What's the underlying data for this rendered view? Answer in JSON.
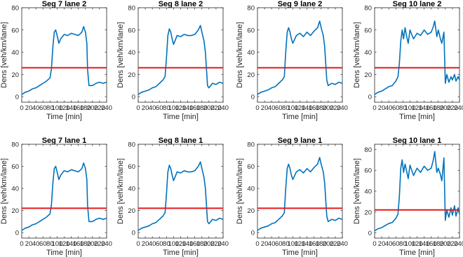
{
  "figure": {
    "background": "#ffffff"
  },
  "style": {
    "series_color": "#0072BD",
    "threshold_color": "#e31a1c",
    "axis_color": "#262626"
  },
  "chart_data": [
    {
      "type": "line",
      "title": "Seg 7 lane 2",
      "xlabel": "Time [min]",
      "ylabel": "Dens [veh/km/lane]",
      "xlim": [
        0,
        240
      ],
      "ylim": [
        -5,
        80
      ],
      "xticks": [
        0,
        20,
        40,
        60,
        80,
        100,
        120,
        140,
        160,
        180,
        200,
        220,
        240
      ],
      "yticks": [
        0,
        20,
        40,
        60,
        80
      ],
      "threshold": 26,
      "series": [
        {
          "x": [
            0,
            10,
            20,
            30,
            40,
            50,
            60,
            70,
            80,
            84,
            88,
            92,
            96,
            100,
            105,
            110,
            120,
            130,
            140,
            150,
            160,
            170,
            175,
            180,
            184,
            186,
            190,
            200,
            210,
            220,
            230,
            240
          ],
          "y": [
            2,
            4,
            5,
            7,
            8,
            10,
            12,
            14,
            17,
            25,
            45,
            58,
            60,
            55,
            48,
            52,
            56,
            55,
            57,
            56,
            55,
            58,
            63,
            58,
            48,
            25,
            10,
            10,
            12,
            13,
            12,
            13
          ]
        }
      ]
    },
    {
      "type": "line",
      "title": "Seg 8 lane 2",
      "xlabel": "Time [min]",
      "ylabel": "Dens [veh/km/lane]",
      "xlim": [
        0,
        240
      ],
      "ylim": [
        -5,
        80
      ],
      "xticks": [
        0,
        20,
        40,
        60,
        80,
        100,
        120,
        140,
        160,
        180,
        200,
        220,
        240
      ],
      "yticks": [
        0,
        20,
        40,
        60,
        80
      ],
      "threshold": 26,
      "series": [
        {
          "x": [
            0,
            10,
            20,
            30,
            40,
            50,
            60,
            70,
            76,
            80,
            84,
            88,
            92,
            96,
            100,
            110,
            120,
            130,
            140,
            150,
            160,
            170,
            176,
            180,
            186,
            190,
            196,
            200,
            210,
            220,
            230,
            240
          ],
          "y": [
            2,
            4,
            5,
            6,
            8,
            9,
            12,
            15,
            18,
            35,
            55,
            61,
            58,
            52,
            47,
            55,
            54,
            56,
            55,
            55,
            56,
            60,
            64,
            58,
            50,
            40,
            10,
            8,
            12,
            11,
            13,
            12
          ]
        }
      ]
    },
    {
      "type": "line",
      "title": "Seg 9 lane 2",
      "xlabel": "Time [min]",
      "ylabel": "Dens [veh/km/lane]",
      "xlim": [
        0,
        240
      ],
      "ylim": [
        -5,
        80
      ],
      "xticks": [
        0,
        20,
        40,
        60,
        80,
        100,
        120,
        140,
        160,
        180,
        200,
        220,
        240
      ],
      "yticks": [
        0,
        20,
        40,
        60,
        80
      ],
      "threshold": 26,
      "series": [
        {
          "x": [
            0,
            10,
            20,
            30,
            40,
            50,
            60,
            70,
            76,
            80,
            84,
            88,
            92,
            96,
            100,
            110,
            120,
            130,
            140,
            150,
            160,
            170,
            176,
            180,
            186,
            190,
            196,
            200,
            210,
            220,
            230,
            240
          ],
          "y": [
            2,
            4,
            5,
            6,
            8,
            9,
            12,
            15,
            18,
            40,
            58,
            62,
            58,
            52,
            48,
            55,
            57,
            54,
            58,
            55,
            59,
            62,
            68,
            62,
            55,
            45,
            15,
            10,
            12,
            11,
            13,
            12
          ]
        }
      ]
    },
    {
      "type": "line",
      "title": "Seg 10 lane 2",
      "xlabel": "Time [min]",
      "ylabel": "Dens [veh/km/lane]",
      "xlim": [
        0,
        240
      ],
      "ylim": [
        -5,
        80
      ],
      "xticks": [
        0,
        20,
        40,
        60,
        80,
        100,
        120,
        140,
        160,
        180,
        200,
        220,
        240
      ],
      "yticks": [
        0,
        20,
        40,
        60,
        80
      ],
      "threshold": 26,
      "series": [
        {
          "x": [
            0,
            10,
            20,
            30,
            40,
            50,
            60,
            66,
            70,
            74,
            78,
            82,
            86,
            90,
            95,
            100,
            110,
            120,
            130,
            140,
            150,
            160,
            166,
            170,
            176,
            180,
            186,
            190,
            196,
            200,
            204,
            210,
            216,
            220,
            226,
            230,
            236,
            240
          ],
          "y": [
            2,
            4,
            5,
            7,
            9,
            10,
            14,
            18,
            30,
            50,
            60,
            52,
            62,
            55,
            48,
            60,
            52,
            57,
            55,
            60,
            56,
            58,
            63,
            68,
            54,
            60,
            52,
            48,
            58,
            12,
            20,
            13,
            18,
            15,
            20,
            14,
            18,
            15
          ]
        }
      ]
    },
    {
      "type": "line",
      "title": "Seg 7 lane 1",
      "xlabel": "Time [min]",
      "ylabel": "Dens [veh/km/lane]",
      "xlim": [
        0,
        240
      ],
      "ylim": [
        -5,
        80
      ],
      "xticks": [
        0,
        20,
        40,
        60,
        80,
        100,
        120,
        140,
        160,
        180,
        200,
        220,
        240
      ],
      "yticks": [
        0,
        20,
        40,
        60,
        80
      ],
      "threshold": 22,
      "series": [
        {
          "x": [
            0,
            10,
            20,
            30,
            40,
            50,
            60,
            70,
            80,
            84,
            88,
            92,
            96,
            100,
            105,
            110,
            120,
            130,
            140,
            150,
            160,
            170,
            175,
            180,
            184,
            186,
            190,
            200,
            210,
            220,
            230,
            240
          ],
          "y": [
            2,
            4,
            5,
            7,
            8,
            10,
            12,
            14,
            17,
            25,
            45,
            58,
            60,
            55,
            48,
            52,
            56,
            55,
            57,
            56,
            55,
            58,
            63,
            58,
            48,
            25,
            10,
            10,
            12,
            13,
            12,
            13
          ]
        }
      ]
    },
    {
      "type": "line",
      "title": "Seg 8 lane 1",
      "xlabel": "Time [min]",
      "ylabel": "Dens [veh/km/lane]",
      "xlim": [
        0,
        240
      ],
      "ylim": [
        -5,
        80
      ],
      "xticks": [
        0,
        20,
        40,
        60,
        80,
        100,
        120,
        140,
        160,
        180,
        200,
        220,
        240
      ],
      "yticks": [
        0,
        20,
        40,
        60,
        80
      ],
      "threshold": 22,
      "series": [
        {
          "x": [
            0,
            10,
            20,
            30,
            40,
            50,
            60,
            70,
            76,
            80,
            84,
            88,
            92,
            96,
            100,
            110,
            120,
            130,
            140,
            150,
            160,
            170,
            176,
            180,
            186,
            190,
            196,
            200,
            210,
            220,
            230,
            240
          ],
          "y": [
            2,
            4,
            5,
            6,
            8,
            9,
            12,
            15,
            18,
            35,
            55,
            61,
            58,
            52,
            47,
            55,
            54,
            56,
            55,
            55,
            56,
            60,
            64,
            58,
            50,
            40,
            10,
            8,
            12,
            11,
            13,
            12
          ]
        }
      ]
    },
    {
      "type": "line",
      "title": "Seg 9 lane 1",
      "xlabel": "Time [min]",
      "ylabel": "Dens [veh/km/lane]",
      "xlim": [
        0,
        240
      ],
      "ylim": [
        -5,
        80
      ],
      "xticks": [
        0,
        20,
        40,
        60,
        80,
        100,
        120,
        140,
        160,
        180,
        200,
        220,
        240
      ],
      "yticks": [
        0,
        20,
        40,
        60,
        80
      ],
      "threshold": 22,
      "series": [
        {
          "x": [
            0,
            10,
            20,
            30,
            40,
            50,
            60,
            70,
            76,
            80,
            84,
            88,
            92,
            96,
            100,
            110,
            120,
            130,
            140,
            150,
            160,
            170,
            176,
            180,
            186,
            190,
            196,
            200,
            210,
            220,
            230,
            240
          ],
          "y": [
            2,
            4,
            5,
            6,
            8,
            9,
            12,
            15,
            18,
            40,
            58,
            62,
            58,
            52,
            48,
            55,
            57,
            54,
            58,
            55,
            59,
            62,
            68,
            62,
            55,
            45,
            15,
            10,
            12,
            11,
            13,
            12
          ]
        }
      ]
    },
    {
      "type": "line",
      "title": "Seg 10 lane 1",
      "xlabel": "Time [min]",
      "ylabel": "Dens [veh/km/lane]",
      "xlim": [
        0,
        240
      ],
      "ylim": [
        -5,
        85
      ],
      "xticks": [
        0,
        20,
        40,
        60,
        80,
        100,
        120,
        140,
        160,
        180,
        200,
        220,
        240
      ],
      "yticks": [
        0,
        20,
        40,
        60,
        80
      ],
      "threshold": 22,
      "series": [
        {
          "x": [
            0,
            10,
            20,
            30,
            40,
            50,
            60,
            66,
            70,
            74,
            78,
            82,
            86,
            90,
            95,
            100,
            110,
            120,
            130,
            140,
            150,
            160,
            166,
            170,
            176,
            180,
            186,
            190,
            196,
            200,
            204,
            210,
            216,
            220,
            226,
            230,
            236,
            240
          ],
          "y": [
            2,
            4,
            5,
            7,
            9,
            10,
            14,
            18,
            35,
            62,
            70,
            58,
            66,
            60,
            52,
            65,
            55,
            62,
            58,
            64,
            60,
            62,
            70,
            78,
            58,
            62,
            56,
            50,
            72,
            12,
            22,
            15,
            24,
            17,
            26,
            16,
            24,
            18
          ]
        }
      ]
    }
  ]
}
